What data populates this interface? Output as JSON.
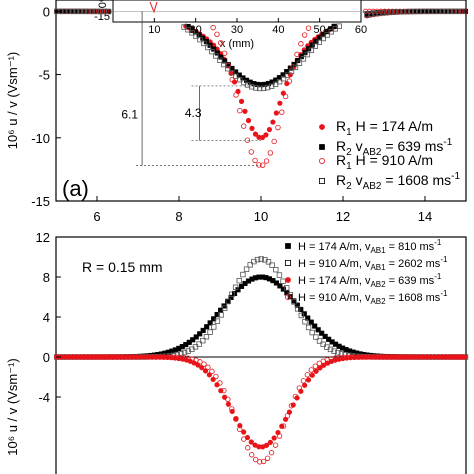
{
  "chart_data": [
    {
      "type": "scatter",
      "panel": "a",
      "panel_tag": "(a)",
      "xlabel": "",
      "ylabel": "10⁶ u / v (Vsm⁻¹)",
      "xlim": [
        5,
        15
      ],
      "ylim": [
        -15,
        0.9
      ],
      "xticks": [
        6,
        8,
        10,
        12,
        14
      ],
      "yticks": [
        -15,
        -10,
        -5,
        0
      ],
      "inset": {
        "xlabel": "x (mm)",
        "xlim": [
          0,
          60
        ],
        "xticks": [
          10,
          20,
          30,
          40,
          50,
          60
        ],
        "partial_ytick": "-15",
        "partial_ylabel": "10⁶"
      },
      "annotations": [
        {
          "text": "6.1",
          "between_y": [
            0,
            -12.2
          ],
          "x": 7.1
        },
        {
          "text": "4.3",
          "between_y": [
            -5.9,
            -10.2
          ],
          "x": 8.5
        }
      ],
      "legend": [
        {
          "marker": "filled-circle",
          "color": "#e8141a",
          "label": "R",
          "sub": "1",
          "rest": "H = 174 A/m"
        },
        {
          "marker": "filled-square",
          "color": "#000000",
          "label": "R",
          "sub": "2",
          "rest": "v",
          "rest_sub": "AB2",
          "tail": " = 639 ms",
          "sup": "-1"
        },
        {
          "marker": "open-circle",
          "color": "#e8141a",
          "label": "R",
          "sub": "1",
          "rest": "H = 910 A/m"
        },
        {
          "marker": "open-square",
          "color": "#000000",
          "label": "R",
          "sub": "2",
          "rest": "v",
          "rest_sub": "AB2",
          "tail": " = 1608 ms",
          "sup": "-1"
        }
      ],
      "series": [
        {
          "marker": "filled-circle",
          "color": "#e8141a",
          "peak_x": 10.0,
          "peak_y": -10.0,
          "width": 0.45,
          "plateau": true
        },
        {
          "marker": "filled-square",
          "color": "#000000",
          "peak_x": 10.0,
          "peak_y": -5.8,
          "width": 1.0
        },
        {
          "marker": "open-circle",
          "color": "#e8141a",
          "peak_x": 10.0,
          "peak_y": -12.2,
          "width": 0.55
        },
        {
          "marker": "open-square",
          "color": "#555555",
          "peak_x": 10.0,
          "peak_y": -6.1,
          "width": 1.05
        }
      ]
    },
    {
      "type": "scatter",
      "panel": "b",
      "ylabel": "10⁶ u / v (Vsm⁻¹)",
      "ylim": [
        -12,
        12
      ],
      "xlim": [
        5,
        15
      ],
      "yticks": [
        -4,
        0,
        4,
        8,
        12
      ],
      "annotation_text": "R = 0.15 mm",
      "legend": [
        {
          "marker": "filled-square",
          "color": "#000000",
          "text": "H = 174 A/m, v",
          "sub": "AB1",
          "tail": " = 810 ms",
          "sup": "-1"
        },
        {
          "marker": "open-square",
          "color": "#000000",
          "text": "H = 910 A/m, v",
          "sub": "AB1",
          "tail": " = 2602 ms",
          "sup": "-1"
        },
        {
          "marker": "filled-circle",
          "color": "#e8141a",
          "text": "H = 174 A/m, v",
          "sub": "AB2",
          "tail": " = 639 ms",
          "sup": "-1"
        },
        {
          "marker": "open-circle",
          "color": "#e8141a",
          "text": "H = 910 A/m, v",
          "sub": "AB2",
          "tail": " = 1608 ms",
          "sup": "-1"
        }
      ],
      "series": [
        {
          "marker": "filled-square",
          "color": "#000000",
          "peak_x": 10.0,
          "peak_y": 8.0,
          "width": 0.95
        },
        {
          "marker": "open-square",
          "color": "#555555",
          "peak_x": 10.0,
          "peak_y": 9.8,
          "width": 0.75
        },
        {
          "marker": "filled-circle",
          "color": "#e8141a",
          "peak_x": 10.0,
          "peak_y": -9.0,
          "width": 0.7
        },
        {
          "marker": "open-circle",
          "color": "#e8141a",
          "peak_x": 10.0,
          "peak_y": -10.5,
          "width": 0.6
        }
      ]
    }
  ]
}
